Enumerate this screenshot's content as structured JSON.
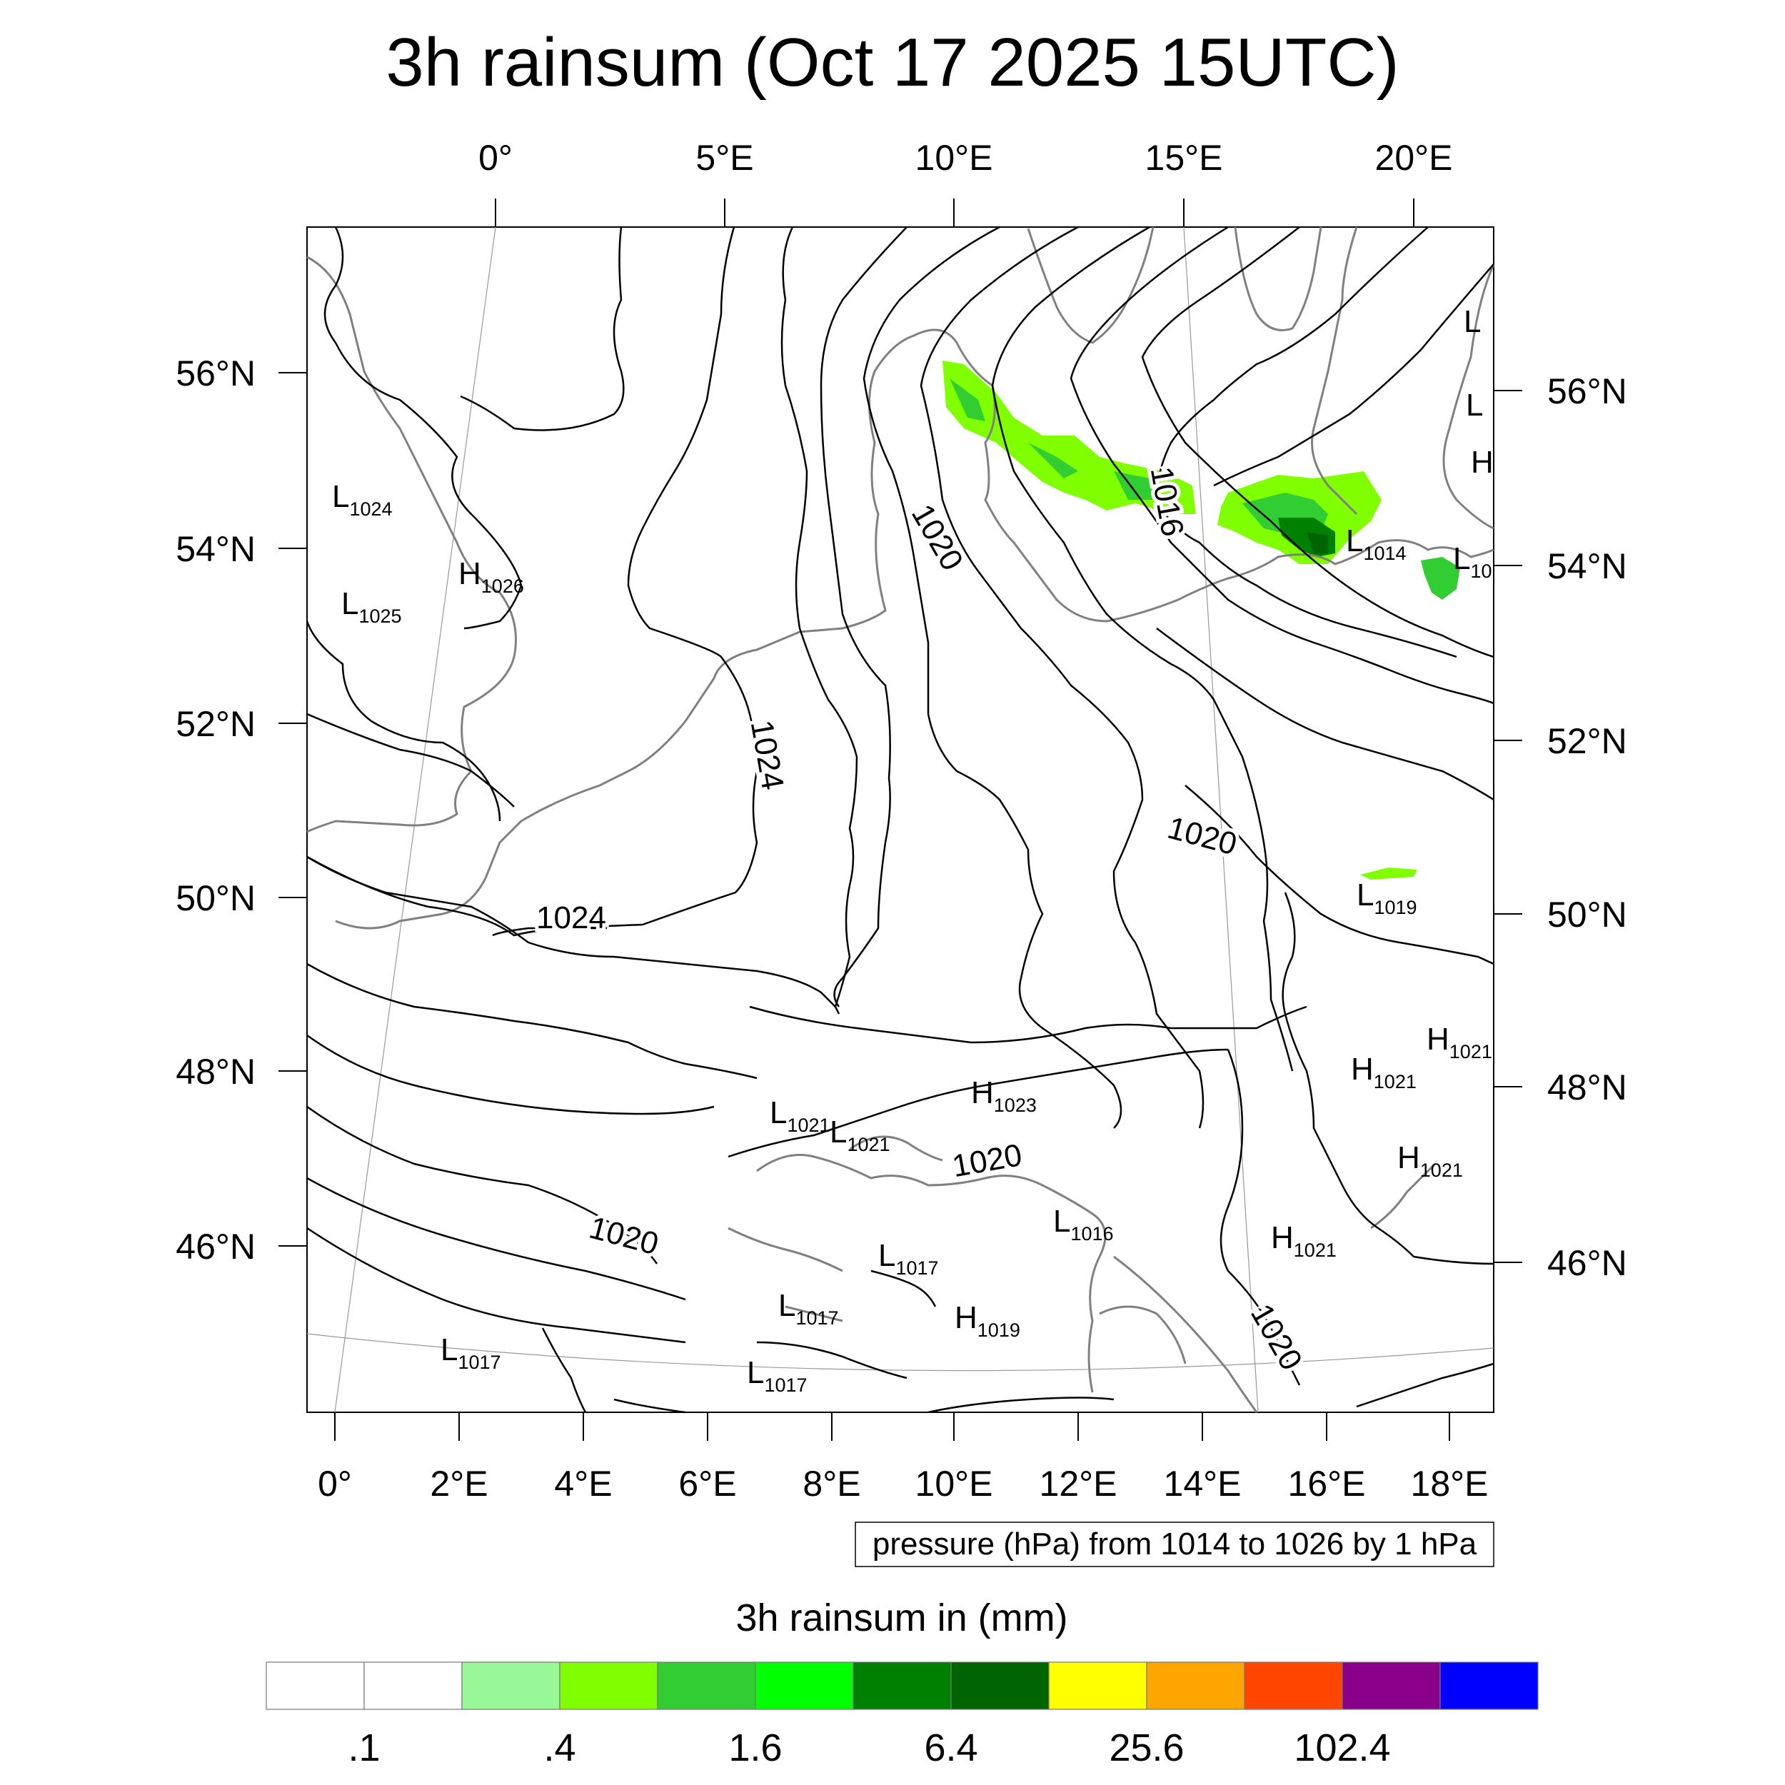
{
  "title": "3h rainsum (Oct 17 2025 15UTC)",
  "top_lon_labels": [
    "0°",
    "5°E",
    "10°E",
    "15°E",
    "20°E"
  ],
  "bottom_lon_labels": [
    "0°",
    "2°E",
    "4°E",
    "6°E",
    "8°E",
    "10°E",
    "12°E",
    "14°E",
    "16°E",
    "18°E"
  ],
  "left_lat_labels": [
    "56°N",
    "54°N",
    "52°N",
    "50°N",
    "48°N",
    "46°N"
  ],
  "right_lat_labels": [
    "56°N",
    "54°N",
    "52°N",
    "50°N",
    "48°N",
    "46°N"
  ],
  "contour_labels": [
    "1024",
    "1024",
    "1020",
    "1016",
    "1020",
    "1020",
    "1020",
    "1020"
  ],
  "pressure_centers": [
    {
      "type": "L",
      "value": "1024"
    },
    {
      "type": "H",
      "value": "1026"
    },
    {
      "type": "L",
      "value": "1025"
    },
    {
      "type": "L",
      "value": "1014"
    },
    {
      "type": "L",
      "value": "10"
    },
    {
      "type": "L",
      "value": "1019"
    },
    {
      "type": "H",
      "value": "1021"
    },
    {
      "type": "H",
      "value": "1021"
    },
    {
      "type": "H",
      "value": "1021"
    },
    {
      "type": "H",
      "value": "1021"
    },
    {
      "type": "H",
      "value": "1023"
    },
    {
      "type": "L",
      "value": "1021"
    },
    {
      "type": "L",
      "value": "1021"
    },
    {
      "type": "L",
      "value": "1016"
    },
    {
      "type": "L",
      "value": "1017"
    },
    {
      "type": "L",
      "value": "1017"
    },
    {
      "type": "L",
      "value": "1017"
    },
    {
      "type": "L",
      "value": "1017"
    },
    {
      "type": "H",
      "value": "1019"
    },
    {
      "type": "L",
      "value": ""
    },
    {
      "type": "L",
      "value": ""
    },
    {
      "type": "H",
      "value": ""
    }
  ],
  "pressure_note": "pressure (hPa) from 1014 to 1026 by 1 hPa",
  "colorbar": {
    "title": "3h rainsum in (mm)",
    "colors": [
      "#ffffff",
      "#ffffff",
      "#98f898",
      "#7fff00",
      "#32cd32",
      "#00ff00",
      "#008000",
      "#006400",
      "#ffff00",
      "#ffa500",
      "#ff4500",
      "#8b008b",
      "#0000ff"
    ],
    "labels": [
      ".1",
      ".4",
      "1.6",
      "6.4",
      "25.6",
      "102.4"
    ]
  }
}
